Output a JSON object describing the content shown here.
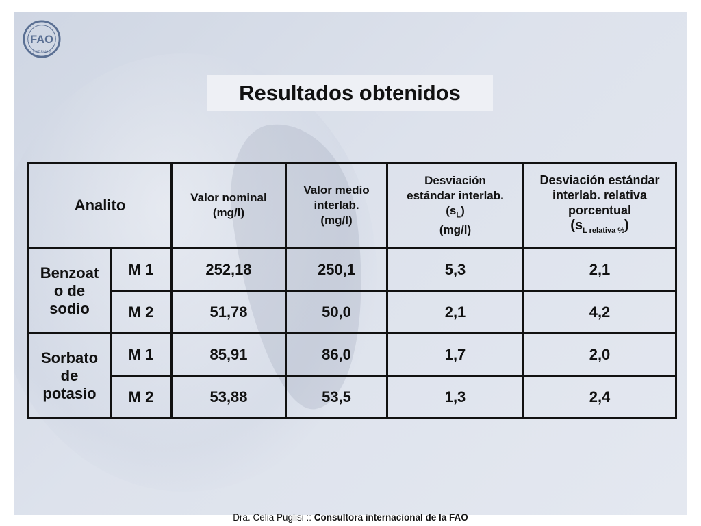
{
  "slide": {
    "title": "Resultados obtenidos"
  },
  "logo": {
    "text": "FAO",
    "motto": "FIAT PANIS"
  },
  "table": {
    "headers": {
      "analito": "Analito",
      "valor_nominal": {
        "line1": "Valor nominal",
        "line2": "(mg/l)"
      },
      "valor_medio": {
        "line1": "Valor medio",
        "line2": "interlab.",
        "line3": "(mg/l)"
      },
      "desviacion": {
        "line1": "Desviación",
        "line2": "estándar interlab.",
        "symbol": "(s",
        "sub": "L",
        "close": ")",
        "line4": "(mg/l)"
      },
      "desviacion_relativa": {
        "line1": "Desviación estándar",
        "line2": "interlab. relativa",
        "line3": "porcentual",
        "symbol": "(s",
        "sub": "L relativa %",
        "close": ")"
      }
    },
    "groups": [
      {
        "name_lines": [
          "Benzoat",
          "o de",
          "sodio"
        ],
        "rows": [
          {
            "m": "M 1",
            "nominal": "252,18",
            "medio": "250,1",
            "sl": "5,3",
            "slrel": "2,1"
          },
          {
            "m": "M 2",
            "nominal": "51,78",
            "medio": "50,0",
            "sl": "2,1",
            "slrel": "4,2"
          }
        ]
      },
      {
        "name_lines": [
          "Sorbato",
          "de",
          "potasio"
        ],
        "rows": [
          {
            "m": "M 1",
            "nominal": "85,91",
            "medio": "86,0",
            "sl": "1,7",
            "slrel": "2,0"
          },
          {
            "m": "M 2",
            "nominal": "53,88",
            "medio": "53,5",
            "sl": "1,3",
            "slrel": "2,4"
          }
        ]
      }
    ]
  },
  "footer": {
    "author": "Dra. Celia Puglisi",
    "sep": " :: ",
    "role": "Consultora internacional de la FAO"
  },
  "colors": {
    "background": "#d9dee8",
    "title_box": "#eef0f5",
    "text": "#111111"
  }
}
